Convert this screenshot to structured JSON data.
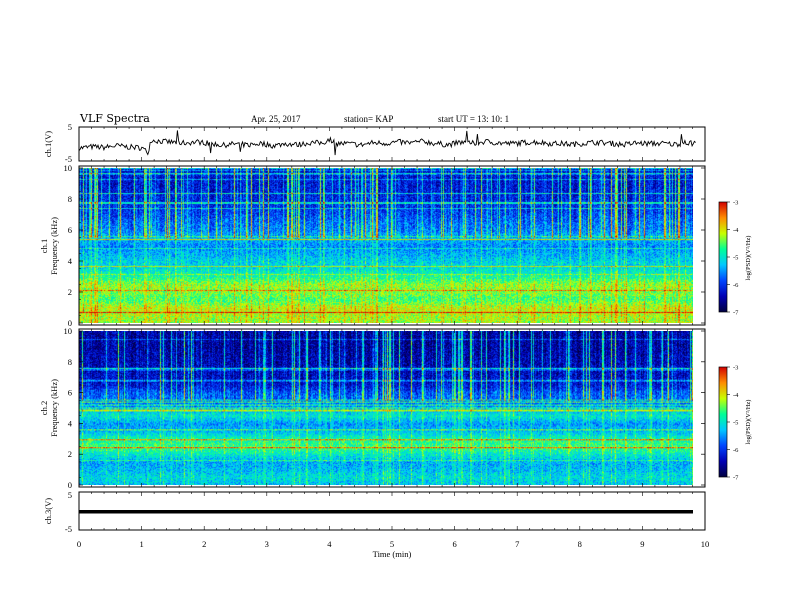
{
  "header": {
    "title": "VLF Spectra",
    "date": "Apr. 25, 2017",
    "station": "station= KAP",
    "start": "start  UT =   13: 10: 1"
  },
  "chart_data": [
    {
      "type": "line",
      "name": "ch1-waveform",
      "ylabel": "ch.1(V)",
      "ylim": [
        -5,
        5
      ],
      "yticks": [
        "5",
        "-5"
      ],
      "x_range_min": [
        0,
        9.85
      ],
      "trace_min": [
        0,
        0.2,
        0.4,
        0.6,
        0.8,
        1.0,
        1.1,
        1.15,
        1.3,
        1.5,
        1.7,
        1.9,
        2.1,
        2.3,
        2.5,
        2.7,
        2.9,
        3.1,
        3.3,
        3.5,
        3.7,
        3.9,
        4.0,
        4.1,
        4.3,
        4.5,
        4.7,
        4.9,
        5.1,
        5.3,
        5.5,
        5.7,
        5.9,
        6.1,
        6.3,
        6.5,
        6.7,
        6.9,
        7.1,
        7.3,
        7.5,
        7.7,
        7.9,
        8.1,
        8.3,
        8.5,
        8.7,
        8.9,
        9.1,
        9.3,
        9.5,
        9.7,
        9.85
      ],
      "trace_v": [
        -1.2,
        -0.8,
        -1.0,
        -0.5,
        -0.9,
        -1.1,
        -2.5,
        1.2,
        0.8,
        0.5,
        0.3,
        0.6,
        0.2,
        -0.4,
        0.1,
        -0.3,
        0.2,
        -0.5,
        0.1,
        -0.2,
        0.4,
        0.3,
        1.5,
        0.2,
        0.1,
        -0.3,
        0.4,
        0.2,
        0.6,
        0.3,
        0.8,
        0.1,
        -0.2,
        0.5,
        0.2,
        0.7,
        0.3,
        0.1,
        0.4,
        0.6,
        0.2,
        0.1,
        -0.1,
        0.3,
        0.5,
        0.2,
        -0.2,
        0.3,
        0.1,
        0.2,
        -0.1,
        0.3,
        0.1
      ]
    },
    {
      "type": "heatmap",
      "name": "ch1-spectrogram",
      "ylabel": "ch.1\nFrequency  (kHz)",
      "ylim": [
        0,
        10
      ],
      "yticks": [
        "0",
        "2",
        "4",
        "6",
        "8",
        "10"
      ],
      "colorbar": {
        "label": "log(PSD)(V²/Hz)",
        "range": [
          -7,
          -3
        ],
        "ticks": [
          "-3",
          "-4",
          "-5",
          "-6",
          "-7"
        ]
      },
      "band_profile_khz": [
        0,
        0.5,
        1.0,
        1.5,
        2.0,
        2.5,
        3.0,
        3.5,
        4.0,
        4.5,
        5.0,
        5.5,
        6.0,
        6.5,
        7.0,
        8.0,
        9.0,
        10.0
      ],
      "band_profile_logpsd": [
        -4.3,
        -4.2,
        -4.1,
        -4.6,
        -4.4,
        -4.3,
        -4.8,
        -5.1,
        -5.2,
        -5.4,
        -5.6,
        -5.3,
        -5.6,
        -5.7,
        -5.9,
        -6.1,
        -6.2,
        -6.2
      ]
    },
    {
      "type": "heatmap",
      "name": "ch2-spectrogram",
      "ylabel": "ch.2\nFrequency  (kHz)",
      "ylim": [
        0,
        10
      ],
      "yticks": [
        "0",
        "2",
        "4",
        "6",
        "8",
        "10"
      ],
      "colorbar": {
        "label": "log(PSD)(V²/Hz)",
        "range": [
          -7,
          -3
        ],
        "ticks": [
          "-3",
          "-4",
          "-5",
          "-6",
          "-7"
        ]
      },
      "band_profile_khz": [
        0,
        0.5,
        1.0,
        1.5,
        2.0,
        2.5,
        3.0,
        3.5,
        4.0,
        4.5,
        5.0,
        5.5,
        6.0,
        6.5,
        7.0,
        8.0,
        9.0,
        10.0
      ],
      "band_profile_logpsd": [
        -5.3,
        -5.1,
        -5.3,
        -5.4,
        -5.0,
        -4.6,
        -4.8,
        -5.3,
        -5.5,
        -5.0,
        -5.4,
        -5.7,
        -5.8,
        -6.2,
        -6.3,
        -6.4,
        -6.5,
        -6.5
      ]
    },
    {
      "type": "line",
      "name": "ch3-waveform",
      "ylabel": "ch.3(V)",
      "ylim": [
        -5,
        5
      ],
      "yticks": [
        "5",
        "-5"
      ],
      "x_range_min": [
        0,
        9.85
      ],
      "level_v": 0
    }
  ],
  "xaxis": {
    "label": "Time  (min)",
    "range": [
      0,
      10
    ],
    "ticks": [
      "0",
      "1",
      "2",
      "3",
      "4",
      "5",
      "6",
      "7",
      "8",
      "9",
      "10"
    ]
  },
  "colors": {
    "trace": "#000000",
    "frame": "#000000",
    "colormap": [
      "#000040",
      "#0000b4",
      "#0046ff",
      "#00c8ff",
      "#00ff96",
      "#c8ff00",
      "#ff8c00",
      "#d20000",
      "#ffffff"
    ]
  }
}
